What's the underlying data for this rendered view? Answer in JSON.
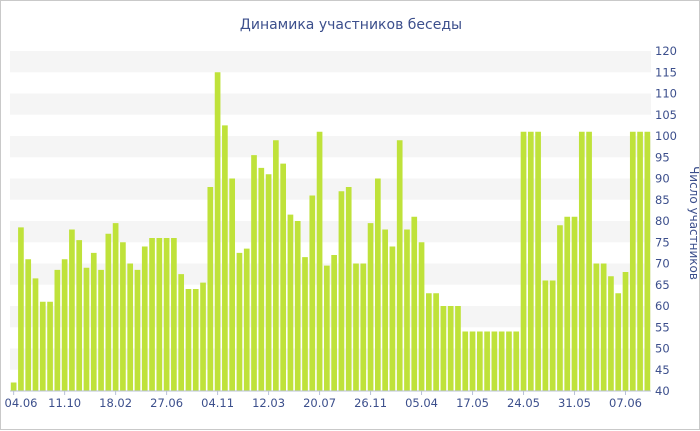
{
  "chart_data": {
    "type": "bar",
    "title": "Динамика участников беседы",
    "ylabel": "Число участников",
    "xlabel": "",
    "ylim": [
      40,
      120
    ],
    "y_ticks": [
      40,
      45,
      50,
      55,
      60,
      65,
      70,
      75,
      80,
      85,
      90,
      95,
      100,
      105,
      110,
      115,
      120
    ],
    "y_axis_side": "right",
    "grid": "horizontal alternating bands",
    "bar_color": "#bfe23a",
    "band_color": "#f5f5f5",
    "text_color": "#3c4f8c",
    "x_tick_labels": [
      "04.06",
      "11.10",
      "18.02",
      "27.06",
      "04.11",
      "12.03",
      "20.07",
      "26.11",
      "05.04",
      "17.05",
      "24.05",
      "31.05",
      "07.06"
    ],
    "x_tick_positions": [
      0,
      7,
      14,
      21,
      28,
      35,
      42,
      49,
      56,
      63,
      70,
      77,
      84
    ],
    "values": [
      42,
      78.5,
      71,
      66.5,
      61,
      61,
      68.5,
      71,
      78,
      75.5,
      69,
      72.5,
      68.5,
      77,
      79.5,
      75,
      70,
      68.5,
      74,
      76,
      76,
      76,
      76,
      67.5,
      64,
      64,
      65.5,
      88,
      115,
      102.5,
      90,
      72.5,
      73.5,
      95.5,
      92.5,
      91,
      99,
      93.5,
      81.5,
      80,
      71.5,
      86,
      101,
      69.5,
      72,
      87,
      88,
      70,
      70,
      79.5,
      90,
      78,
      74,
      99,
      78,
      81,
      75,
      63,
      63,
      60,
      60,
      60,
      54,
      54,
      54,
      54,
      54,
      54,
      54,
      54,
      101,
      101,
      101,
      66,
      66,
      79,
      81,
      81,
      101,
      101,
      70,
      70,
      67,
      63,
      68,
      101,
      101,
      101
    ]
  }
}
